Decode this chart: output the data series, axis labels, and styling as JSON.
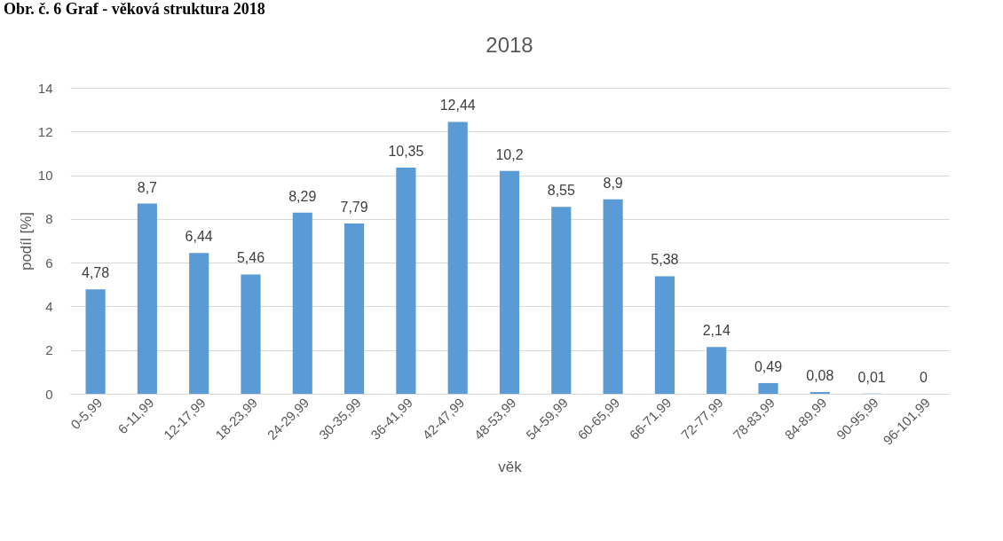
{
  "chart_data": {
    "type": "bar",
    "title": "2018",
    "xlabel": "věk",
    "ylabel": "podíl [%]",
    "annotations": [
      "Obr. č. 6 Graf - věková struktura 2018"
    ],
    "categories": [
      "0-5,99",
      "6-11,99",
      "12-17,99",
      "18-23,99",
      "24-29,99",
      "30-35,99",
      "36-41,99",
      "42-47,99",
      "48-53,99",
      "54-59,99",
      "60-65,99",
      "66-71,99",
      "72-77,99",
      "78-83,99",
      "84-89,99",
      "90-95,99",
      "96-101,99"
    ],
    "values": [
      4.78,
      8.7,
      6.44,
      5.46,
      8.29,
      7.79,
      10.35,
      12.44,
      10.2,
      8.55,
      8.9,
      5.38,
      2.14,
      0.49,
      0.08,
      0.01,
      0
    ],
    "value_labels": [
      "4,78",
      "8,7",
      "6,44",
      "5,46",
      "8,29",
      "7,79",
      "10,35",
      "12,44",
      "10,2",
      "8,55",
      "8,9",
      "5,38",
      "2,14",
      "0,49",
      "0,08",
      "0,01",
      "0"
    ],
    "color": "#5b9bd5",
    "ylim": [
      0,
      14
    ],
    "yticks": [
      0,
      2,
      4,
      6,
      8,
      10,
      12,
      14
    ],
    "grid": "y"
  }
}
